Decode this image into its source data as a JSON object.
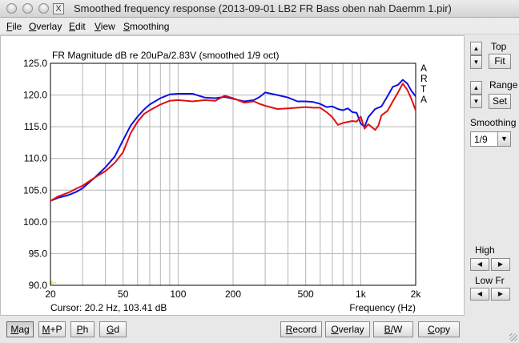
{
  "window": {
    "title": "Smoothed frequency response (2013-09-01 LB2 FR Bass oben nah Daemm 1.pir)",
    "app_icon": "X"
  },
  "menu": [
    "File",
    "Overlay",
    "Edit",
    "View",
    "Smoothing"
  ],
  "chart_header": "FR Magnitude dB re 20uPa/2.83V (smoothed 1/9 oct)",
  "arta_letters": [
    "A",
    "R",
    "T",
    "A"
  ],
  "cursor_readout": "Cursor: 20.2 Hz, 103.41 dB",
  "side": {
    "top_label": "Top",
    "fit_label": "Fit",
    "range_label": "Range",
    "set_label": "Set",
    "smoothing_label": "Smoothing",
    "smoothing_value": "1/9",
    "high_label": "High",
    "lowfr_label": "Low Fr"
  },
  "bottom_buttons": {
    "mag": "Mag",
    "mp": "M+P",
    "ph": "Ph",
    "gd": "Gd",
    "record": "Record",
    "overlay": "Overlay",
    "bw": "B/W",
    "copy": "Copy"
  },
  "colors": {
    "overlay_curve": "#1010e0",
    "current_curve": "#e01010",
    "grid": "#b4b4b4",
    "cursor_marker": "#d8d800"
  },
  "chart_data": {
    "type": "line",
    "title": "FR Magnitude dB re 20uPa/2.83V (smoothed 1/9 oct)",
    "xlabel": "Frequency (Hz)",
    "ylabel": "",
    "x_scale": "log",
    "xlim": [
      20,
      2000
    ],
    "ylim": [
      90,
      125
    ],
    "x_ticks": [
      {
        "value": 20,
        "label": "20"
      },
      {
        "value": 50,
        "label": "50"
      },
      {
        "value": 100,
        "label": "100"
      },
      {
        "value": 200,
        "label": "200"
      },
      {
        "value": 500,
        "label": "500"
      },
      {
        "value": 1000,
        "label": "1k"
      },
      {
        "value": 2000,
        "label": "2k"
      }
    ],
    "y_ticks": [
      "90.0",
      "95.0",
      "100.0",
      "105.0",
      "110.0",
      "115.0",
      "120.0",
      "125.0"
    ],
    "grid": true,
    "series": [
      {
        "color": "#1010e0",
        "points": [
          [
            20,
            103.3
          ],
          [
            22,
            103.8
          ],
          [
            25,
            104.2
          ],
          [
            28,
            104.8
          ],
          [
            30,
            105.3
          ],
          [
            35,
            107.0
          ],
          [
            40,
            108.6
          ],
          [
            45,
            110.3
          ],
          [
            50,
            112.9
          ],
          [
            55,
            115.2
          ],
          [
            60,
            116.6
          ],
          [
            65,
            117.7
          ],
          [
            70,
            118.5
          ],
          [
            80,
            119.5
          ],
          [
            90,
            120.1
          ],
          [
            100,
            120.2
          ],
          [
            120,
            120.2
          ],
          [
            140,
            119.6
          ],
          [
            160,
            119.5
          ],
          [
            180,
            119.7
          ],
          [
            200,
            119.4
          ],
          [
            230,
            119.0
          ],
          [
            260,
            119.2
          ],
          [
            280,
            119.7
          ],
          [
            300,
            120.4
          ],
          [
            350,
            120.0
          ],
          [
            400,
            119.6
          ],
          [
            450,
            119.0
          ],
          [
            500,
            119.0
          ],
          [
            550,
            118.9
          ],
          [
            600,
            118.6
          ],
          [
            650,
            118.1
          ],
          [
            700,
            118.2
          ],
          [
            750,
            117.8
          ],
          [
            800,
            117.6
          ],
          [
            850,
            117.9
          ],
          [
            900,
            117.3
          ],
          [
            950,
            117.2
          ],
          [
            1000,
            115.5
          ],
          [
            1050,
            115.0
          ],
          [
            1100,
            116.5
          ],
          [
            1200,
            117.8
          ],
          [
            1300,
            118.2
          ],
          [
            1400,
            119.8
          ],
          [
            1500,
            121.3
          ],
          [
            1600,
            121.6
          ],
          [
            1700,
            122.4
          ],
          [
            1800,
            121.8
          ],
          [
            1900,
            120.6
          ],
          [
            2000,
            119.8
          ]
        ]
      },
      {
        "color": "#e01010",
        "points": [
          [
            20,
            103.3
          ],
          [
            22,
            104.0
          ],
          [
            25,
            104.6
          ],
          [
            28,
            105.3
          ],
          [
            30,
            105.7
          ],
          [
            35,
            107.0
          ],
          [
            40,
            108.0
          ],
          [
            45,
            109.3
          ],
          [
            50,
            111.0
          ],
          [
            55,
            114.0
          ],
          [
            60,
            115.8
          ],
          [
            65,
            117.0
          ],
          [
            70,
            117.6
          ],
          [
            80,
            118.5
          ],
          [
            90,
            119.1
          ],
          [
            100,
            119.2
          ],
          [
            120,
            119.0
          ],
          [
            140,
            119.2
          ],
          [
            160,
            119.1
          ],
          [
            180,
            119.9
          ],
          [
            200,
            119.5
          ],
          [
            230,
            118.8
          ],
          [
            260,
            119.0
          ],
          [
            280,
            118.6
          ],
          [
            300,
            118.3
          ],
          [
            350,
            117.8
          ],
          [
            400,
            117.9
          ],
          [
            450,
            118.0
          ],
          [
            500,
            118.1
          ],
          [
            550,
            118.0
          ],
          [
            600,
            118.0
          ],
          [
            650,
            117.3
          ],
          [
            700,
            116.5
          ],
          [
            750,
            115.3
          ],
          [
            800,
            115.6
          ],
          [
            900,
            115.9
          ],
          [
            950,
            115.8
          ],
          [
            1000,
            116.6
          ],
          [
            1050,
            114.7
          ],
          [
            1100,
            115.4
          ],
          [
            1200,
            114.5
          ],
          [
            1250,
            115.2
          ],
          [
            1300,
            116.8
          ],
          [
            1400,
            117.5
          ],
          [
            1500,
            119.0
          ],
          [
            1600,
            120.4
          ],
          [
            1700,
            121.8
          ],
          [
            1800,
            120.8
          ],
          [
            1900,
            119.3
          ],
          [
            2000,
            117.6
          ]
        ]
      }
    ]
  }
}
